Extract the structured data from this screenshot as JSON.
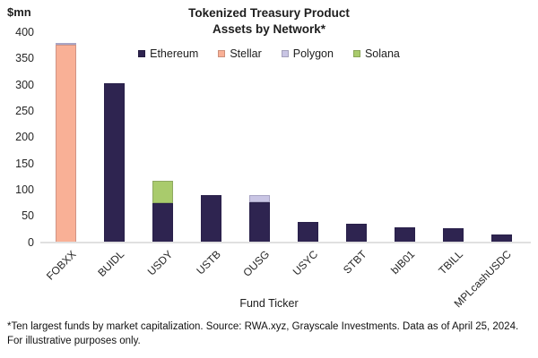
{
  "title": {
    "line1": "Tokenized Treasury Product",
    "line2": "Assets by Network*"
  },
  "y_axis_unit": "$mn",
  "x_axis_label": "Fund Ticker",
  "footnote": "*Ten largest funds by market capitalization. Source: RWA.xyz, Grayscale Investments. Data as of April 25, 2024. For illustrative purposes only.",
  "colors": {
    "ethereum": "#2e2450",
    "stellar": "#f9b096",
    "polygon": "#c9c5e4",
    "solana": "#a9cb6c",
    "axis_line": "#e0e0e0",
    "text": "#1d1d1d"
  },
  "chart_data": {
    "type": "bar",
    "stacked": true,
    "title": "Tokenized Treasury Product Assets by Network*",
    "xlabel": "Fund Ticker",
    "ylabel": "$mn",
    "ylim": [
      0,
      400
    ],
    "ytick_step": 50,
    "grid": false,
    "legend_position": "top",
    "categories": [
      "FOBXX",
      "BUIDL",
      "USDY",
      "USTB",
      "OUSG",
      "USYC",
      "STBT",
      "bIB01",
      "TBILL",
      "MPLcashUSDC"
    ],
    "series": [
      {
        "name": "Ethereum",
        "color": "#2e2450",
        "values": [
          0,
          303,
          75,
          90,
          76,
          39,
          36,
          29,
          27,
          15
        ]
      },
      {
        "name": "Stellar",
        "color": "#f9b096",
        "values": [
          377,
          0,
          0,
          0,
          0,
          0,
          0,
          0,
          0,
          0
        ]
      },
      {
        "name": "Polygon",
        "color": "#c9c5e4",
        "values": [
          3,
          0,
          0,
          0,
          14,
          0,
          0,
          0,
          0,
          0
        ]
      },
      {
        "name": "Solana",
        "color": "#a9cb6c",
        "values": [
          0,
          0,
          42,
          0,
          0,
          0,
          0,
          0,
          0,
          0
        ]
      }
    ],
    "totals": [
      380,
      303,
      117,
      90,
      90,
      39,
      36,
      29,
      27,
      15
    ]
  }
}
